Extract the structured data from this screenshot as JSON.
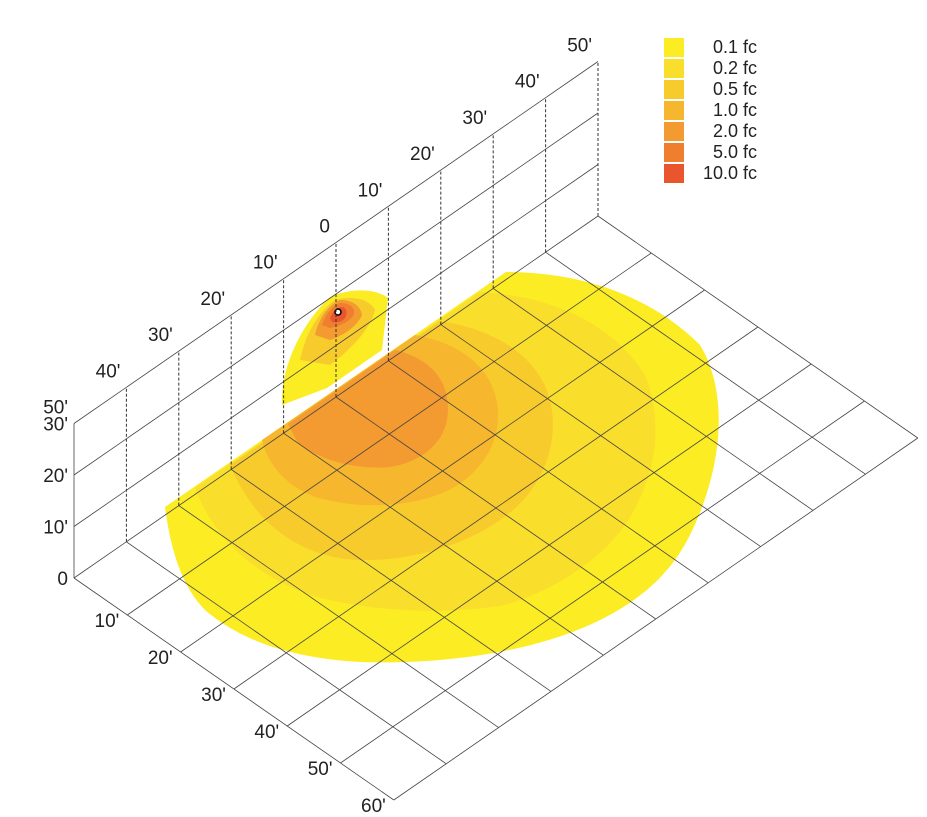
{
  "chart_data": {
    "type": "heatmap",
    "subtype": "3d-isometric-illuminance-plot",
    "units": "fc",
    "grid": true,
    "legend": {
      "placement": "top-right",
      "entries": [
        {
          "label": "0.1 fc",
          "level": 0.1,
          "color": "#fbec23"
        },
        {
          "label": "0.2 fc",
          "level": 0.2,
          "color": "#fade2c"
        },
        {
          "label": "0.5 fc",
          "level": 0.5,
          "color": "#f8cb2c"
        },
        {
          "label": "1.0 fc",
          "level": 1.0,
          "color": "#f6b62e"
        },
        {
          "label": "2.0 fc",
          "level": 2.0,
          "color": "#f39a30"
        },
        {
          "label": "5.0 fc",
          "level": 5.0,
          "color": "#ef7e2f"
        },
        {
          "label": "10.0 fc",
          "level": 10.0,
          "color": "#e9552c"
        }
      ]
    },
    "axes": {
      "lateral": {
        "ticks": [
          "50'",
          "40'",
          "30'",
          "20'",
          "10'",
          "0",
          "10'",
          "20'",
          "30'",
          "40'",
          "50'"
        ]
      },
      "depth": {
        "ticks": [
          "10'",
          "20'",
          "30'",
          "40'",
          "50'",
          "60'"
        ]
      },
      "height": {
        "ticks": [
          "0",
          "10'",
          "20'",
          "30'"
        ]
      }
    }
  }
}
